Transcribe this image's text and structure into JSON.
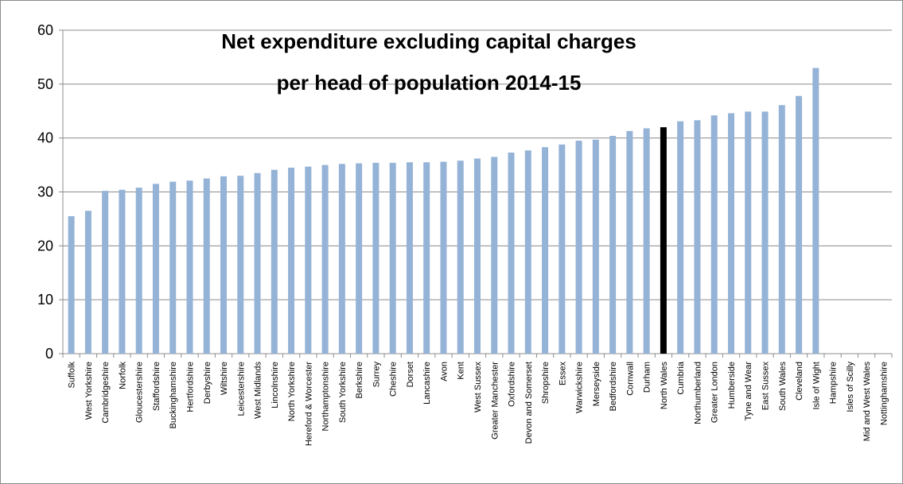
{
  "chart_data": {
    "type": "bar",
    "title_lines": [
      "Net expenditure excluding capital charges",
      "per head of population 2014-15"
    ],
    "xlabel": "",
    "ylabel": "",
    "ylim": [
      0,
      60
    ],
    "yticks": [
      0,
      10,
      20,
      30,
      40,
      50,
      60
    ],
    "grid": true,
    "legend": "none",
    "bar_color": "#95b3d7",
    "highlight_color": "#000000",
    "highlight_category": "North Wales",
    "categories": [
      "Suffolk",
      "West Yorkshire",
      "Cambridgeshire",
      "Norfolk",
      "Gloucestershire",
      "Staffordshire",
      "Buckinghamshire",
      "Hertfordshire",
      "Derbyshire",
      "Wiltshire",
      "Leicestershire",
      "West Midlands",
      "Lincolnshire",
      "North Yorkshire",
      "Hereford & Worcester",
      "Northamptonshire",
      "South Yorkshire",
      "Berkshire",
      "Surrey",
      "Cheshire",
      "Dorset",
      "Lancashire",
      "Avon",
      "Kent",
      "West Sussex",
      "Greater Manchester",
      "Oxfordshire",
      "Devon and Somerset",
      "Shropshire",
      "Essex",
      "Warwickshire",
      "Merseyside",
      "Bedfordshire",
      "Cornwall",
      "Durham",
      "North Wales",
      "Cumbria",
      "Northumberland",
      "Greater London",
      "Humberside",
      "Tyne and Wear",
      "East Sussex",
      "South Wales",
      "Cleveland",
      "Isle of Wight",
      "Hampshire",
      "Isles of Scilly",
      "Mid and West Wales",
      "Nottinghamshire"
    ],
    "values": [
      25.5,
      26.5,
      30.2,
      30.4,
      30.8,
      31.5,
      31.9,
      32.1,
      32.5,
      32.9,
      33.0,
      33.5,
      34.1,
      34.5,
      34.7,
      35.0,
      35.2,
      35.3,
      35.4,
      35.4,
      35.5,
      35.5,
      35.6,
      35.8,
      36.2,
      36.5,
      37.3,
      37.7,
      38.3,
      38.8,
      39.5,
      39.7,
      40.4,
      41.3,
      41.8,
      42.0,
      43.1,
      43.3,
      44.2,
      44.6,
      44.9,
      44.9,
      46.1,
      47.8,
      53.0,
      null,
      null,
      null,
      null
    ]
  }
}
